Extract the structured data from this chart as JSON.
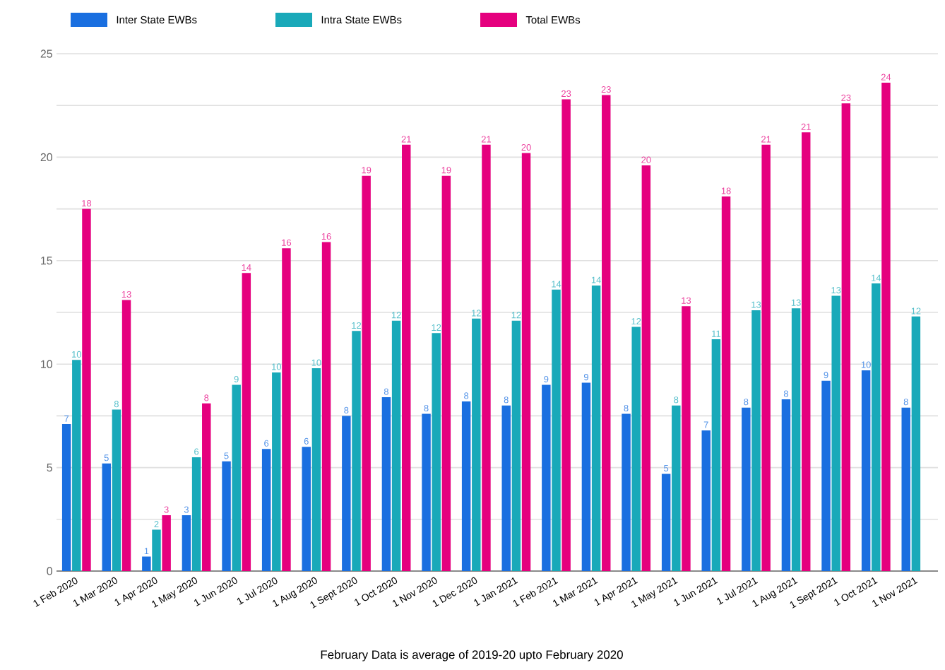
{
  "chart_data": {
    "type": "bar",
    "categories": [
      "1 Feb 2020",
      "1 Mar 2020",
      "1 Apr 2020",
      "1 May 2020",
      "1 Jun 2020",
      "1 Jul 2020",
      "1 Aug 2020",
      "1 Sept 2020",
      "1 Oct 2020",
      "1 Nov 2020",
      "1 Dec 2020",
      "1 Jan 2021",
      "1 Feb 2021",
      "1 Mar 2021",
      "1 Apr 2021",
      "1 May 2021",
      "1 Jun 2021",
      "1 Jul 2021",
      "1 Aug 2021",
      "1 Sept 2021",
      "1 Oct 2021",
      "1 Nov 2021"
    ],
    "series": [
      {
        "name": "Inter State EWBs",
        "color": "#1a6fe0",
        "values": [
          7.1,
          5.2,
          0.7,
          2.7,
          5.3,
          5.9,
          6.0,
          7.5,
          8.4,
          7.6,
          8.2,
          8.0,
          9.0,
          9.1,
          7.6,
          4.7,
          6.8,
          7.9,
          8.3,
          9.2,
          9.7,
          7.9
        ],
        "value_labels": [
          "7",
          "5",
          "1",
          "3",
          "5",
          "6",
          "6",
          "8",
          "8",
          "8",
          "8",
          "8",
          "9",
          "9",
          "8",
          "5",
          "7",
          "8",
          "8",
          "9",
          "10",
          "8"
        ]
      },
      {
        "name": "Intra State EWBs",
        "color": "#19a9b9",
        "values": [
          10.2,
          7.8,
          2.0,
          5.5,
          9.0,
          9.6,
          9.8,
          11.6,
          12.1,
          11.5,
          12.2,
          12.1,
          13.6,
          13.8,
          11.8,
          8.0,
          11.2,
          12.6,
          12.7,
          13.3,
          13.9,
          12.3
        ],
        "value_labels": [
          "10",
          "8",
          "2",
          "6",
          "9",
          "10",
          "10",
          "12",
          "12",
          "12",
          "12",
          "12",
          "14",
          "14",
          "12",
          "8",
          "11",
          "13",
          "13",
          "13",
          "14",
          "12"
        ]
      },
      {
        "name": "Total EWBs",
        "color": "#e5007e",
        "values": [
          17.5,
          13.1,
          2.7,
          8.1,
          14.4,
          15.6,
          15.9,
          19.1,
          20.6,
          19.1,
          20.6,
          20.2,
          22.8,
          23.0,
          19.6,
          12.8,
          18.1,
          20.6,
          21.2,
          22.6,
          23.6,
          null
        ],
        "value_labels": [
          "18",
          "13",
          "3",
          "8",
          "14",
          "16",
          "16",
          "19",
          "21",
          "19",
          "21",
          "20",
          "23",
          "23",
          "20",
          "13",
          "18",
          "21",
          "21",
          "23",
          "24",
          null
        ]
      }
    ],
    "ylim": [
      0,
      25
    ],
    "yticks": [
      0,
      {
        "value": 2.5,
        "label": null
      },
      5,
      {
        "value": 7.5,
        "label": null
      },
      10,
      {
        "value": 12.5,
        "label": null
      },
      15,
      {
        "value": 17.5,
        "label": null
      },
      20,
      {
        "value": 22.5,
        "label": null
      },
      25
    ],
    "grid": "y",
    "legend": "top left",
    "annotations": [
      "February Data is average of 2019-20 upto February 2020"
    ]
  }
}
